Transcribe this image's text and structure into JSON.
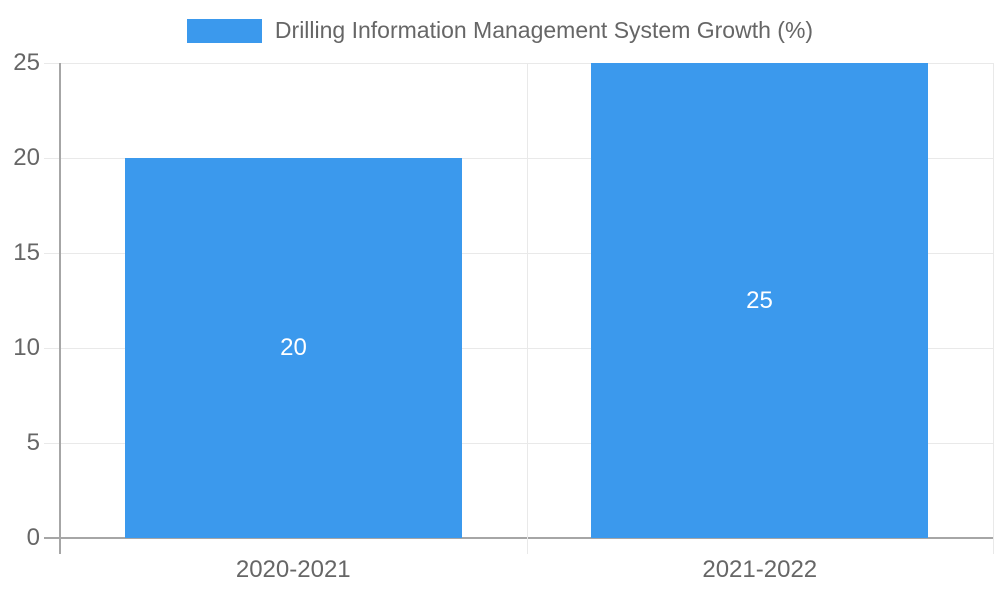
{
  "chart_data": {
    "type": "bar",
    "legend_label": "Drilling Information Management System Growth (%)",
    "legend_position": "top",
    "categories": [
      "2020-2021",
      "2021-2022"
    ],
    "values": [
      20,
      25
    ],
    "data_labels": [
      "20",
      "25"
    ],
    "ylim": [
      0,
      25
    ],
    "yticks": [
      0,
      5,
      10,
      15,
      20,
      25
    ],
    "grid": true,
    "colors": {
      "bar": "#3B99ED",
      "data_label": "#FFFFFF",
      "axis_text": "#666666",
      "gridline": "#E9E9E9",
      "axis_line": "#A6A6A6",
      "background": "#FFFFFF"
    }
  }
}
